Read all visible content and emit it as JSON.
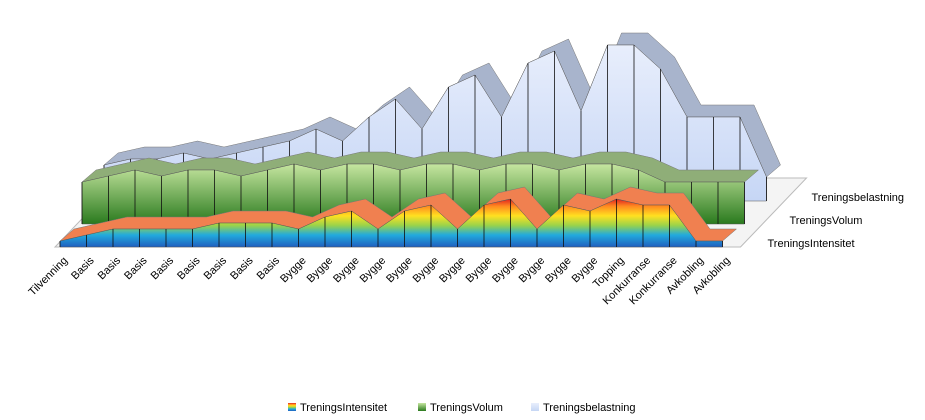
{
  "chart_data": {
    "type": "area3d",
    "categories": [
      "Tilvenning",
      "Basis",
      "Basis",
      "Basis",
      "Basis",
      "Basis",
      "Basis",
      "Basis",
      "Basis",
      "Bygge",
      "Bygge",
      "Bygge",
      "Bygge",
      "Bygge",
      "Bygge",
      "Bygge",
      "Bygge",
      "Bygge",
      "Bygge",
      "Bygge",
      "Bygge",
      "Topping",
      "Konkurranse",
      "Konkurranse",
      "Avkobling",
      "Avkobling"
    ],
    "series": [
      {
        "name": "TreningsIntensitet",
        "color": "url(#gInt)",
        "values": [
          1,
          2,
          3,
          3,
          3,
          3,
          4,
          4,
          4,
          3,
          5,
          6,
          3,
          6,
          7,
          3,
          7,
          8,
          3,
          7,
          6,
          8,
          7,
          7,
          1,
          1
        ]
      },
      {
        "name": "TreningsVolum",
        "color": "url(#gVol)",
        "values": [
          7,
          8,
          9,
          8,
          9,
          9,
          8,
          9,
          10,
          9,
          10,
          10,
          9,
          10,
          10,
          9,
          10,
          10,
          9,
          10,
          10,
          9,
          7,
          7,
          7,
          7
        ]
      },
      {
        "name": "Treningsbelastning",
        "color": "url(#gBel)",
        "values": [
          6,
          7,
          7,
          8,
          7,
          8,
          9,
          10,
          12,
          10,
          14,
          17,
          12,
          19,
          21,
          14,
          23,
          25,
          15,
          26,
          26,
          22,
          14,
          14,
          14,
          4
        ]
      }
    ]
  }
}
